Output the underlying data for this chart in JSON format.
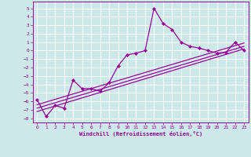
{
  "title": "",
  "xlabel": "Windchill (Refroidissement éolien,°C)",
  "bg_color": "#cce8e8",
  "grid_color": "#ffffff",
  "line_color": "#990099",
  "xlim": [
    -0.5,
    23.5
  ],
  "ylim": [
    -8.5,
    5.8
  ],
  "xticks": [
    0,
    1,
    2,
    3,
    4,
    5,
    6,
    7,
    8,
    9,
    10,
    11,
    12,
    13,
    14,
    15,
    16,
    17,
    18,
    19,
    20,
    21,
    22,
    23
  ],
  "yticks": [
    -8,
    -7,
    -6,
    -5,
    -4,
    -3,
    -2,
    -1,
    0,
    1,
    2,
    3,
    4,
    5
  ],
  "zigzag_x": [
    0,
    1,
    2,
    3,
    4,
    5,
    6,
    7,
    8,
    9,
    10,
    11,
    12,
    13,
    14,
    15,
    16,
    17,
    18,
    19,
    20,
    21,
    22,
    23
  ],
  "zigzag_y": [
    -5.8,
    -7.8,
    -6.5,
    -6.8,
    -3.5,
    -4.5,
    -4.5,
    -4.8,
    -3.8,
    -1.8,
    -0.5,
    -0.3,
    0.0,
    5.0,
    3.2,
    2.5,
    1.0,
    0.5,
    0.3,
    0.0,
    -0.3,
    -0.2,
    1.0,
    0.0
  ],
  "line1_x": [
    0,
    23
  ],
  "line1_y": [
    -7.2,
    0.2
  ],
  "line2_x": [
    0,
    23
  ],
  "line2_y": [
    -6.8,
    0.5
  ],
  "line3_x": [
    0,
    23
  ],
  "line3_y": [
    -6.4,
    0.9
  ]
}
